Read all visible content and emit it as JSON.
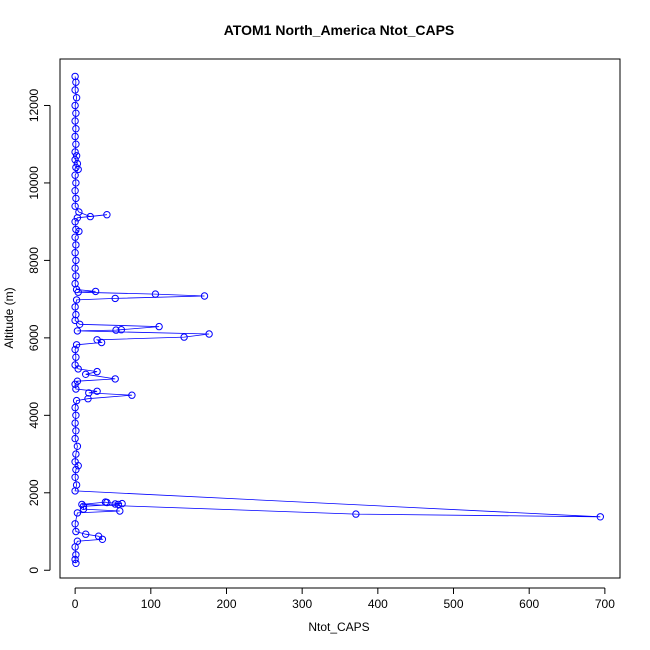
{
  "chart_data": {
    "type": "scatter",
    "title": "ATOM1 North_America Ntot_CAPS",
    "xlabel": "Ntot_CAPS",
    "ylabel": "Altitude (m)",
    "xlim": [
      -20,
      720
    ],
    "ylim": [
      -200,
      13200
    ],
    "xticks": [
      0,
      100,
      200,
      300,
      400,
      500,
      600,
      700
    ],
    "yticks": [
      0,
      2000,
      4000,
      6000,
      8000,
      10000,
      12000
    ],
    "grid": false,
    "legend": "none",
    "color": "#0000ff",
    "marker": "open-circle",
    "connect_points": true,
    "series": [
      {
        "points": [
          [
            0,
            12750
          ],
          [
            1,
            12600
          ],
          [
            0,
            12400
          ],
          [
            2,
            12200
          ],
          [
            0,
            12000
          ],
          [
            1,
            11800
          ],
          [
            0,
            11600
          ],
          [
            1,
            11400
          ],
          [
            0,
            11200
          ],
          [
            1,
            11000
          ],
          [
            0,
            10800
          ],
          [
            2,
            10700
          ],
          [
            0,
            10600
          ],
          [
            3,
            10500
          ],
          [
            1,
            10400
          ],
          [
            4,
            10350
          ],
          [
            0,
            10200
          ],
          [
            1,
            10000
          ],
          [
            0,
            9800
          ],
          [
            1,
            9600
          ],
          [
            0,
            9400
          ],
          [
            5,
            9250
          ],
          [
            20,
            9130
          ],
          [
            42,
            9180
          ],
          [
            3,
            9100
          ],
          [
            0,
            9000
          ],
          [
            1,
            8800
          ],
          [
            5,
            8750
          ],
          [
            0,
            8600
          ],
          [
            1,
            8400
          ],
          [
            0,
            8200
          ],
          [
            1,
            8000
          ],
          [
            0,
            7800
          ],
          [
            1,
            7600
          ],
          [
            0,
            7400
          ],
          [
            2,
            7250
          ],
          [
            27,
            7200
          ],
          [
            4,
            7180
          ],
          [
            106,
            7130
          ],
          [
            171,
            7080
          ],
          [
            53,
            7020
          ],
          [
            2,
            6980
          ],
          [
            0,
            6800
          ],
          [
            1,
            6600
          ],
          [
            0,
            6450
          ],
          [
            6,
            6350
          ],
          [
            111,
            6290
          ],
          [
            61,
            6210
          ],
          [
            54,
            6200
          ],
          [
            3,
            6180
          ],
          [
            177,
            6100
          ],
          [
            144,
            6020
          ],
          [
            29,
            5950
          ],
          [
            35,
            5880
          ],
          [
            2,
            5820
          ],
          [
            0,
            5700
          ],
          [
            1,
            5500
          ],
          [
            0,
            5300
          ],
          [
            4,
            5200
          ],
          [
            29,
            5130
          ],
          [
            14,
            5060
          ],
          [
            53,
            4940
          ],
          [
            3,
            4880
          ],
          [
            0,
            4800
          ],
          [
            1,
            4680
          ],
          [
            29,
            4620
          ],
          [
            18,
            4580
          ],
          [
            75,
            4520
          ],
          [
            17,
            4430
          ],
          [
            2,
            4380
          ],
          [
            0,
            4200
          ],
          [
            1,
            4000
          ],
          [
            0,
            3800
          ],
          [
            1,
            3600
          ],
          [
            0,
            3400
          ],
          [
            3,
            3200
          ],
          [
            1,
            3000
          ],
          [
            0,
            2800
          ],
          [
            4,
            2700
          ],
          [
            1,
            2600
          ],
          [
            0,
            2400
          ],
          [
            2,
            2200
          ],
          [
            0,
            2050
          ],
          [
            694,
            1380
          ],
          [
            371,
            1450
          ],
          [
            9,
            1700
          ],
          [
            40,
            1760
          ],
          [
            42,
            1750
          ],
          [
            62,
            1720
          ],
          [
            53,
            1710
          ],
          [
            57,
            1700
          ],
          [
            11,
            1650
          ],
          [
            11,
            1580
          ],
          [
            59,
            1530
          ],
          [
            3,
            1480
          ],
          [
            0,
            1200
          ],
          [
            1,
            1000
          ],
          [
            14,
            930
          ],
          [
            31,
            880
          ],
          [
            36,
            800
          ],
          [
            3,
            750
          ],
          [
            0,
            600
          ],
          [
            1,
            400
          ],
          [
            0,
            280
          ],
          [
            1,
            180
          ]
        ]
      }
    ]
  }
}
